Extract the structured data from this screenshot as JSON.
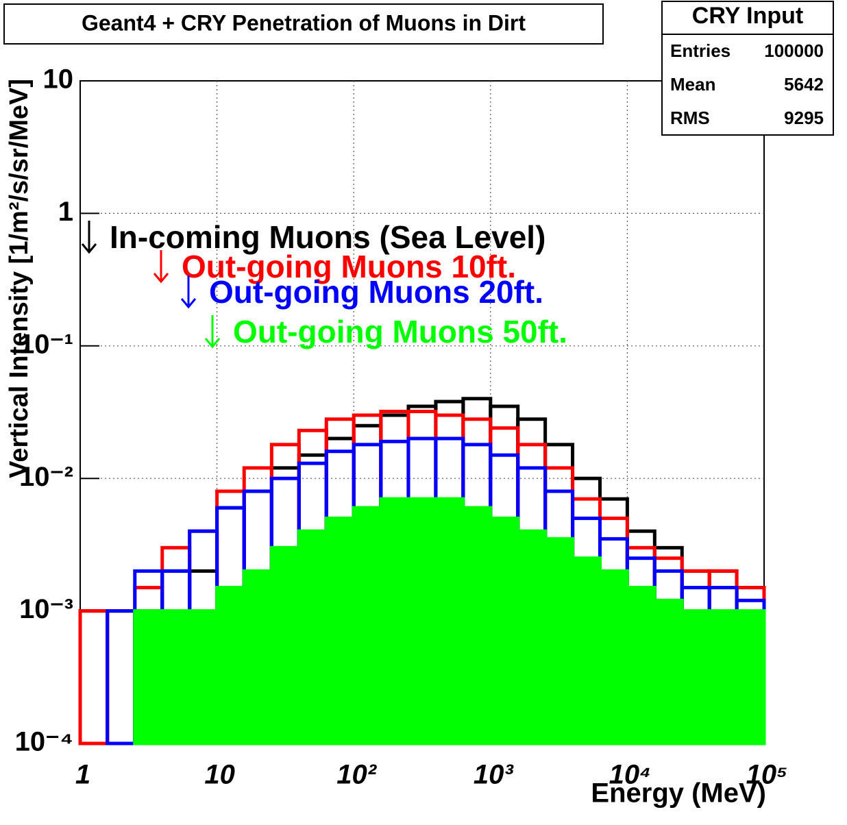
{
  "chart_data": {
    "type": "histogram",
    "title": "Geant4 + CRY Penetration of Muons in Dirt",
    "x_label": "Energy (MeV)",
    "y_label": "Vertical Intensity [1/m²/s/sr/MeV]",
    "x_log": true,
    "y_log": true,
    "grid": true,
    "xlim": [
      1,
      100000
    ],
    "ylim": [
      0.0001,
      10
    ],
    "xticks": [
      1,
      10,
      {
        "value": 100,
        "label": "10²"
      },
      {
        "value": 1000,
        "label": "10³"
      },
      {
        "value": 10000,
        "label": "10⁴"
      },
      {
        "value": 100000,
        "label": "10⁵"
      }
    ],
    "yticks": [
      {
        "value": 0.0001,
        "label": "10⁻⁴"
      },
      {
        "value": 0.001,
        "label": "10⁻³"
      },
      {
        "value": 0.01,
        "label": "10⁻²"
      },
      {
        "value": 0.1,
        "label": "10⁻¹"
      },
      1,
      10
    ],
    "bins": [
      1,
      1.58,
      2.51,
      3.98,
      6.31,
      10,
      15.8,
      25.1,
      39.8,
      63.1,
      100,
      158,
      251,
      398,
      631,
      1000,
      1585,
      2512,
      3981,
      6310,
      10000,
      15850,
      25120,
      39810,
      63100,
      100000
    ],
    "series": [
      {
        "name": "In-coming Muons (Sea Level)",
        "color": "#000000",
        "values": [
          0.001,
          0.001,
          0.001,
          0.002,
          0.002,
          0.006,
          0.008,
          0.012,
          0.015,
          0.02,
          0.025,
          0.03,
          0.035,
          0.038,
          0.04,
          0.035,
          0.028,
          0.018,
          0.01,
          0.007,
          0.004,
          0.003,
          0.002,
          0.002,
          0.0015
        ]
      },
      {
        "name": "Out-going Muons 10ft.",
        "color": "#ff0000",
        "values": [
          0.001,
          0.001,
          0.0015,
          0.003,
          0.004,
          0.008,
          0.012,
          0.018,
          0.023,
          0.028,
          0.03,
          0.032,
          0.032,
          0.03,
          0.028,
          0.024,
          0.018,
          0.012,
          0.007,
          0.005,
          0.003,
          0.0025,
          0.002,
          0.002,
          0.0015
        ]
      },
      {
        "name": "Out-going Muons 20ft.",
        "color": "#0000ff",
        "values": [
          0,
          0.001,
          0.002,
          0.002,
          0.004,
          0.006,
          0.008,
          0.01,
          0.013,
          0.016,
          0.018,
          0.019,
          0.02,
          0.02,
          0.018,
          0.015,
          0.012,
          0.008,
          0.005,
          0.0035,
          0.0025,
          0.002,
          0.0015,
          0.0015,
          0.0012
        ]
      },
      {
        "name": "Out-going Muons 50ft.",
        "color": "#00ff00",
        "values": [
          0,
          0,
          0.001,
          0.001,
          0.001,
          0.0015,
          0.002,
          0.003,
          0.004,
          0.005,
          0.006,
          0.007,
          0.007,
          0.007,
          0.006,
          0.005,
          0.004,
          0.0035,
          0.0025,
          0.002,
          0.0015,
          0.0012,
          0.001,
          0.001,
          0.001
        ]
      }
    ],
    "stats_box": {
      "title": "CRY Input",
      "rows": [
        [
          "Entries",
          100000
        ],
        [
          "Mean",
          5642
        ],
        [
          "RMS",
          9295
        ]
      ]
    }
  }
}
